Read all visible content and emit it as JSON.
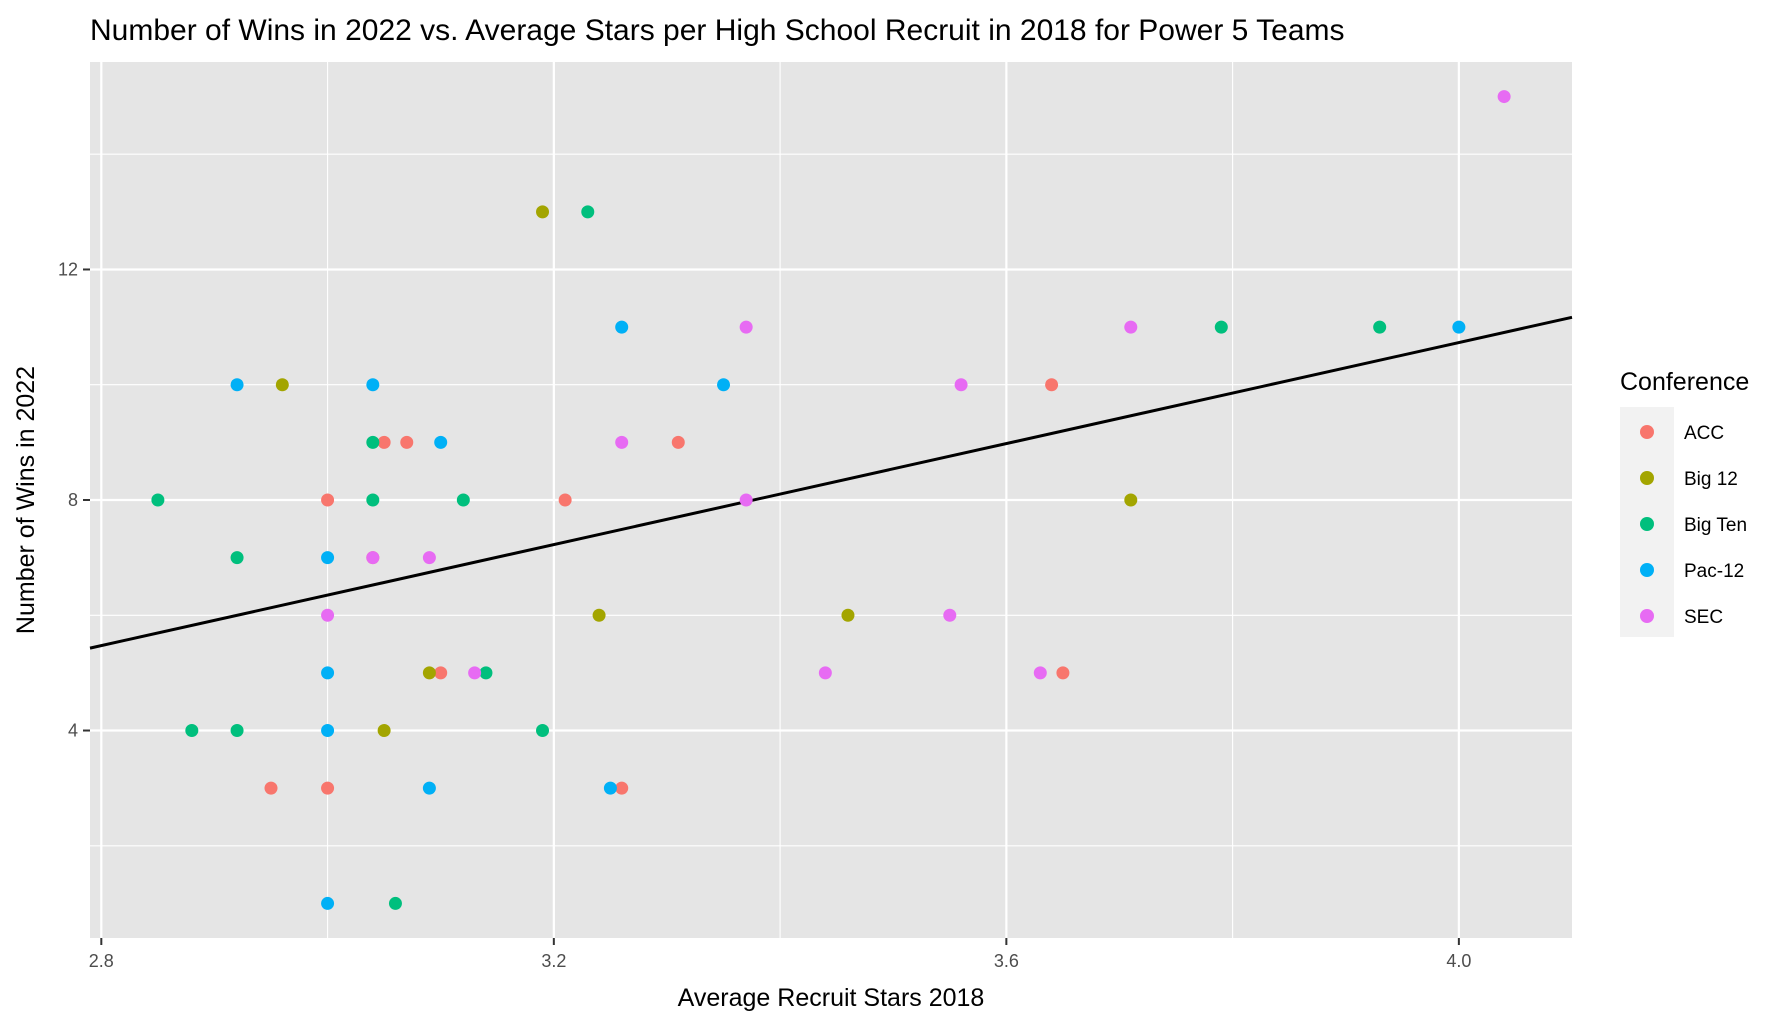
{
  "chart_data": {
    "type": "scatter",
    "title": "Number of Wins in 2022 vs. Average Stars per High School Recruit in 2018 for Power 5 Teams",
    "xlabel": "Average Recruit Stars 2018",
    "ylabel": "Number of Wins in 2022",
    "xlim": [
      2.79,
      4.1
    ],
    "ylim": [
      0.4,
      15.6
    ],
    "x_ticks": [
      2.8,
      3.2,
      3.6,
      4.0
    ],
    "x_tick_labels": [
      "2.8",
      "3.2",
      "3.6",
      "4.0"
    ],
    "x_minor_ticks": [
      3.0,
      3.4,
      3.8
    ],
    "y_ticks": [
      4,
      8,
      12
    ],
    "y_tick_labels": [
      "4",
      "8",
      "12"
    ],
    "y_minor_ticks": [
      2,
      6,
      10,
      14
    ],
    "grid": true,
    "background": "#e5e5e5",
    "legend": {
      "title": "Conference",
      "placement": "right",
      "entries": [
        "ACC",
        "Big 12",
        "Big Ten",
        "Pac-12",
        "SEC"
      ]
    },
    "colors": {
      "ACC": "#f8766d",
      "Big 12": "#a3a500",
      "Big Ten": "#00bf7d",
      "Pac-12": "#00b0f6",
      "SEC": "#e76bf3"
    },
    "trend_line": {
      "x": [
        2.79,
        4.1
      ],
      "y": [
        5.43,
        11.17
      ],
      "color": "#000000"
    },
    "series": [
      {
        "name": "ACC",
        "points": [
          [
            3.0,
            8
          ],
          [
            3.05,
            9
          ],
          [
            3.07,
            9
          ],
          [
            3.04,
            7
          ],
          [
            3.21,
            8
          ],
          [
            3.31,
            9
          ],
          [
            3.64,
            10
          ],
          [
            3.65,
            5
          ],
          [
            3.1,
            5
          ],
          [
            2.95,
            3
          ],
          [
            3.0,
            3
          ],
          [
            3.26,
            3
          ]
        ]
      },
      {
        "name": "Big 12",
        "points": [
          [
            2.96,
            10
          ],
          [
            3.19,
            13
          ],
          [
            3.24,
            6
          ],
          [
            3.46,
            6
          ],
          [
            3.71,
            8
          ],
          [
            3.09,
            5
          ],
          [
            3.05,
            4
          ]
        ]
      },
      {
        "name": "Big Ten",
        "points": [
          [
            2.85,
            8
          ],
          [
            2.92,
            7
          ],
          [
            3.04,
            9
          ],
          [
            3.04,
            8
          ],
          [
            3.12,
            8
          ],
          [
            3.23,
            13
          ],
          [
            3.79,
            11
          ],
          [
            3.93,
            11
          ],
          [
            3.14,
            5
          ],
          [
            2.88,
            4
          ],
          [
            2.92,
            4
          ],
          [
            3.19,
            4
          ],
          [
            3.06,
            1
          ]
        ]
      },
      {
        "name": "Pac-12",
        "points": [
          [
            2.92,
            10
          ],
          [
            3.04,
            10
          ],
          [
            3.1,
            9
          ],
          [
            3.0,
            7
          ],
          [
            3.26,
            11
          ],
          [
            3.35,
            10
          ],
          [
            4.0,
            11
          ],
          [
            3.0,
            5
          ],
          [
            3.0,
            4
          ],
          [
            3.09,
            3
          ],
          [
            3.25,
            3
          ],
          [
            3.0,
            1
          ]
        ]
      },
      {
        "name": "SEC",
        "points": [
          [
            3.37,
            11
          ],
          [
            3.26,
            9
          ],
          [
            3.37,
            8
          ],
          [
            3.04,
            7
          ],
          [
            3.09,
            7
          ],
          [
            3.0,
            6
          ],
          [
            3.13,
            5
          ],
          [
            3.44,
            5
          ],
          [
            3.55,
            6
          ],
          [
            3.56,
            10
          ],
          [
            3.63,
            5
          ],
          [
            3.71,
            11
          ],
          [
            4.04,
            15
          ]
        ]
      }
    ]
  }
}
